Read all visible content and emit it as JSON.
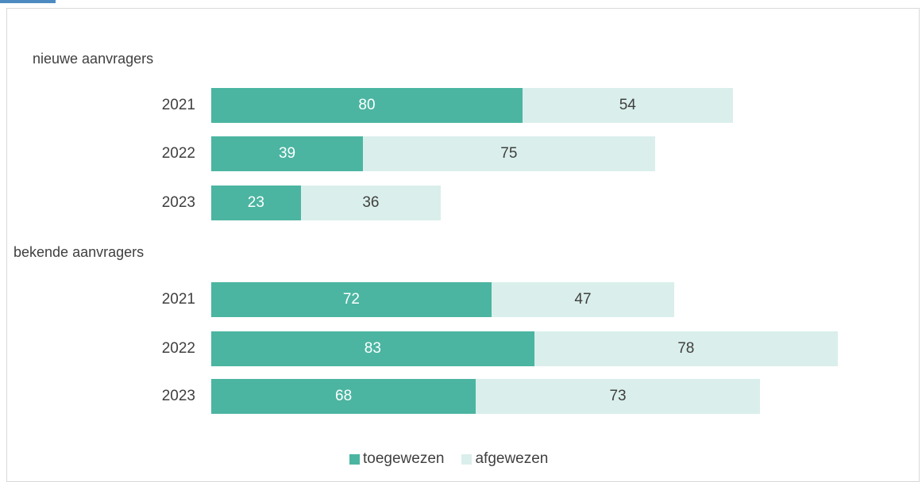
{
  "colors": {
    "toegewezen": "#4bb5a1",
    "afgewezen": "#daefeb",
    "toegewezen_text": "#ffffff",
    "afgewezen_text": "#404040"
  },
  "chart_data": {
    "type": "bar",
    "orientation": "horizontal",
    "stacked": true,
    "groups": [
      {
        "label": "nieuwe aanvragers",
        "categories": [
          "2021",
          "2022",
          "2023"
        ],
        "series": [
          {
            "name": "toegewezen",
            "values": [
              80,
              39,
              23
            ]
          },
          {
            "name": "afgewezen",
            "values": [
              54,
              75,
              36
            ]
          }
        ]
      },
      {
        "label": "bekende aanvragers",
        "categories": [
          "2021",
          "2022",
          "2023"
        ],
        "series": [
          {
            "name": "toegewezen",
            "values": [
              72,
              83,
              68
            ]
          },
          {
            "name": "afgewezen",
            "values": [
              47,
              78,
              73
            ]
          }
        ]
      }
    ],
    "legend": {
      "position": "bottom",
      "entries": [
        "toegewezen",
        "afgewezen"
      ]
    },
    "grid": false,
    "xlim": [
      0,
      165
    ]
  }
}
